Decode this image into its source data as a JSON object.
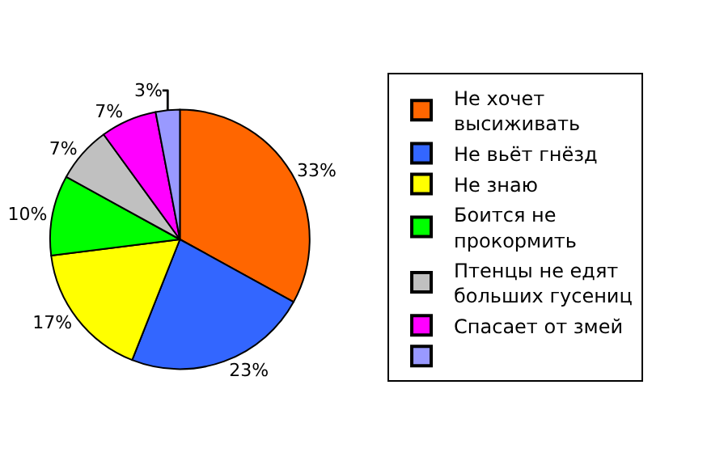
{
  "chart_data": {
    "type": "pie",
    "categories": [
      "Не хочет высиживать",
      "Не вьёт гнёзд",
      "Не знаю",
      "Боится не прокормить",
      "Птенцы не едят больших гусениц",
      "Спасает от змей",
      null
    ],
    "values": [
      33,
      23,
      17,
      10,
      7,
      7,
      3
    ],
    "value_labels": [
      "33%",
      "23%",
      "17%",
      "10%",
      "7%",
      "7%",
      "3%"
    ],
    "colors": [
      "#ff6600",
      "#3366ff",
      "#ffff00",
      "#00ff00",
      "#c0c0c0",
      "#ff00ff",
      "#9999ff"
    ],
    "legend": "right"
  }
}
